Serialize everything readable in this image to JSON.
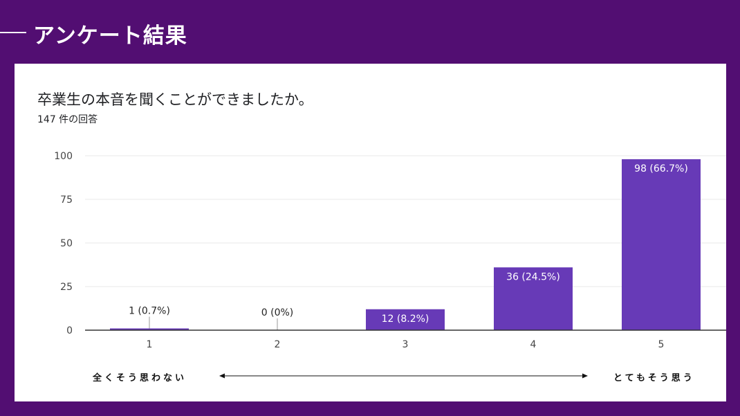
{
  "slide": {
    "title": "アンケート結果",
    "background_color": "#520e72"
  },
  "survey": {
    "question": "卒業生の本音を聞くことができましたか。",
    "response_count": "147 件の回答"
  },
  "scale": {
    "left_label": "全くそう思わない",
    "right_label": "とてもそう思う"
  },
  "chart_data": {
    "type": "bar",
    "categories": [
      "1",
      "2",
      "3",
      "4",
      "5"
    ],
    "values": [
      1,
      0,
      12,
      36,
      98
    ],
    "data_labels": [
      "1 (0.7%)",
      "0 (0%)",
      "12 (8.2%)",
      "36 (24.5%)",
      "98 (66.7%)"
    ],
    "ylim": [
      0,
      100
    ],
    "yticks": [
      0,
      25,
      50,
      75,
      100
    ],
    "grid": true,
    "bar_color": "#673ab7",
    "title": "",
    "xlabel": "",
    "ylabel": ""
  }
}
